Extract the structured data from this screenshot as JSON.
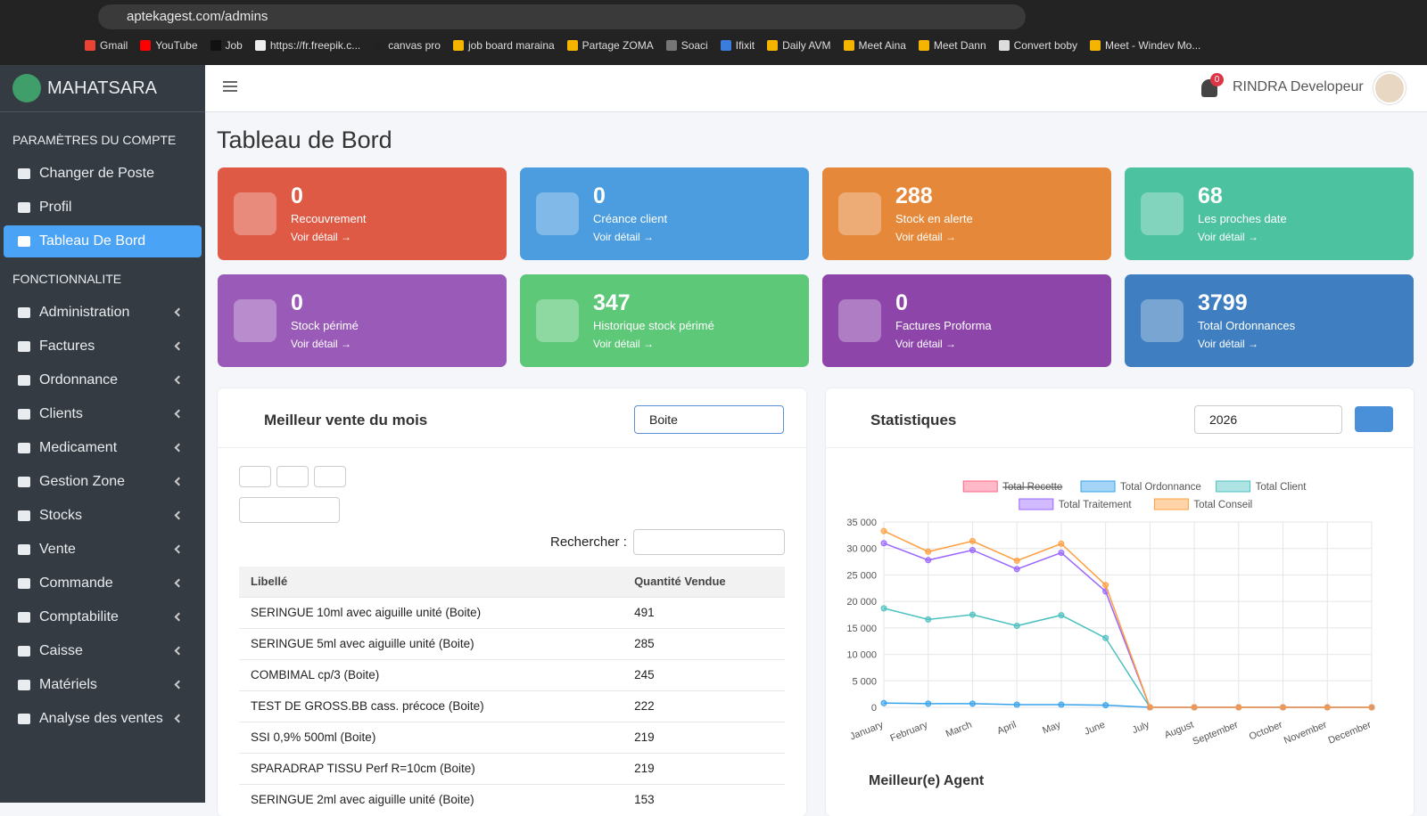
{
  "browser": {
    "url": "aptekagest.com/admins",
    "bookmarks": [
      "Gmail",
      "YouTube",
      "Job",
      "https://fr.freepik.c...",
      "canvas pro",
      "job board maraina",
      "Partage ZOMA",
      "Soaci",
      "Ifixit",
      "Daily AVM",
      "Meet Aina",
      "Meet Dann",
      "Convert boby",
      "Meet - Windev Mo..."
    ]
  },
  "sidebar": {
    "brand": "MAHATSARA",
    "sections": [
      {
        "header": "PARAMÈTRES DU COMPTE",
        "items": [
          {
            "label": "Changer de Poste"
          },
          {
            "label": "Profil"
          },
          {
            "label": "Tableau De Bord",
            "active": true
          }
        ]
      },
      {
        "header": "FONCTIONNALITE",
        "expandable": true,
        "items": [
          {
            "label": "Administration"
          },
          {
            "label": "Factures"
          },
          {
            "label": "Ordonnance"
          },
          {
            "label": "Clients"
          },
          {
            "label": "Medicament"
          },
          {
            "label": "Gestion Zone"
          },
          {
            "label": "Stocks"
          },
          {
            "label": "Vente"
          },
          {
            "label": "Commande"
          },
          {
            "label": "Comptabilite"
          },
          {
            "label": "Caisse"
          },
          {
            "label": "Matériels"
          },
          {
            "label": "Analyse des ventes"
          }
        ]
      }
    ]
  },
  "topbar": {
    "notifications": 0,
    "user": "RINDRA Developeur"
  },
  "page_title": "Tableau de Bord",
  "cards": [
    {
      "value": 0,
      "label": "Recouvrement",
      "link": "Voir détail",
      "color": "#de5a45"
    },
    {
      "value": 0,
      "label": "Créance client",
      "link": "Voir détail",
      "color": "#4b9ddf"
    },
    {
      "value": 288,
      "label": "Stock en alerte",
      "link": "Voir détail",
      "color": "#e5883a"
    },
    {
      "value": 68,
      "label": "Les proches date",
      "link": "Voir détail",
      "color": "#4dc2a0"
    },
    {
      "value": 0,
      "label": "Stock périmé",
      "link": "Voir détail",
      "color": "#9a5bb8"
    },
    {
      "value": 347,
      "label": "Historique stock périmé",
      "link": "Voir détail",
      "color": "#5ec879"
    },
    {
      "value": 0,
      "label": "Factures Proforma",
      "link": "Voir détail",
      "color": "#8d45aa"
    },
    {
      "value": 3799,
      "label": "Total Ordonnances",
      "link": "Voir détail",
      "color": "#3f7fc1"
    }
  ],
  "best_sales": {
    "title": "Meilleur vente du mois",
    "unit_select": "Boite",
    "search_label": "Rechercher :",
    "columns": [
      "Libellé",
      "Quantité Vendue"
    ],
    "rows": [
      [
        "SERINGUE 10ml avec aiguille unité (Boite)",
        491
      ],
      [
        "SERINGUE 5ml avec aiguille unité (Boite)",
        285
      ],
      [
        "COMBIMAL cp/3 (Boite)",
        245
      ],
      [
        "TEST DE GROSS.BB cass. précoce (Boite)",
        222
      ],
      [
        "SSI 0,9% 500ml (Boite)",
        219
      ],
      [
        "SPARADRAP TISSU Perf R=10cm (Boite)",
        219
      ],
      [
        "SERINGUE 2ml avec aiguille unité (Boite)",
        153
      ]
    ]
  },
  "stats": {
    "title": "Statistiques",
    "year_select": "2026"
  },
  "chart_data": {
    "type": "line",
    "categories": [
      "January",
      "February",
      "March",
      "April",
      "May",
      "June",
      "July",
      "August",
      "September",
      "October",
      "November",
      "December"
    ],
    "series": [
      {
        "name": "Total Recette",
        "color": "#ff6384",
        "hidden": true,
        "values": [
          null,
          null,
          null,
          null,
          null,
          null,
          null,
          null,
          null,
          null,
          null,
          null
        ]
      },
      {
        "name": "Total Ordonnance",
        "color": "#36a2eb",
        "values": [
          800,
          700,
          700,
          500,
          500,
          400,
          0,
          0,
          0,
          0,
          0,
          0
        ]
      },
      {
        "name": "Total Client",
        "color": "#4bc0c0",
        "values": [
          18700,
          16600,
          17500,
          15400,
          17400,
          13100,
          0,
          0,
          0,
          0,
          0,
          0
        ]
      },
      {
        "name": "Total Traitement",
        "color": "#9966ff",
        "values": [
          31000,
          27800,
          29700,
          26100,
          29200,
          21900,
          0,
          0,
          0,
          0,
          0,
          0
        ]
      },
      {
        "name": "Total Conseil",
        "color": "#ff9f40",
        "values": [
          33300,
          29400,
          31400,
          27700,
          30900,
          23100,
          0,
          0,
          0,
          0,
          0,
          0
        ]
      }
    ],
    "ylim": [
      0,
      35000
    ],
    "yticks": [
      0,
      {
        "value": 5000,
        "label": "5 000"
      },
      {
        "value": 10000,
        "label": "10 000"
      },
      {
        "value": 15000,
        "label": "15 000"
      },
      {
        "value": 20000,
        "label": "20 000"
      },
      {
        "value": 25000,
        "label": "25 000"
      },
      {
        "value": 30000,
        "label": "30 000"
      },
      {
        "value": 35000,
        "label": "35 000"
      }
    ],
    "grid": true
  },
  "agent": {
    "title": "Meilleur(e) Agent"
  }
}
